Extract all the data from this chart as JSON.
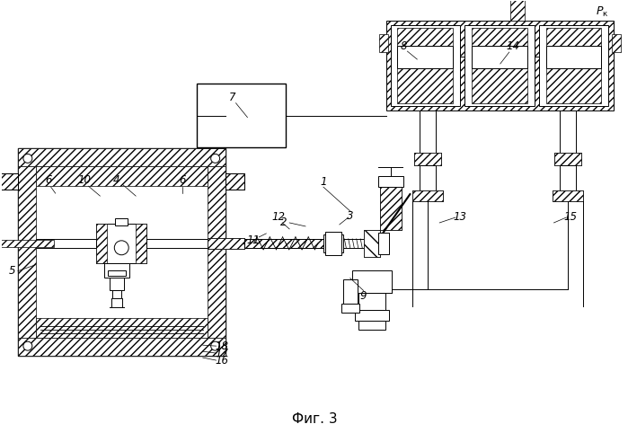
{
  "title": "Фиг. 3",
  "bg_color": "#ffffff",
  "fig_width": 6.99,
  "fig_height": 4.82,
  "dpi": 100
}
